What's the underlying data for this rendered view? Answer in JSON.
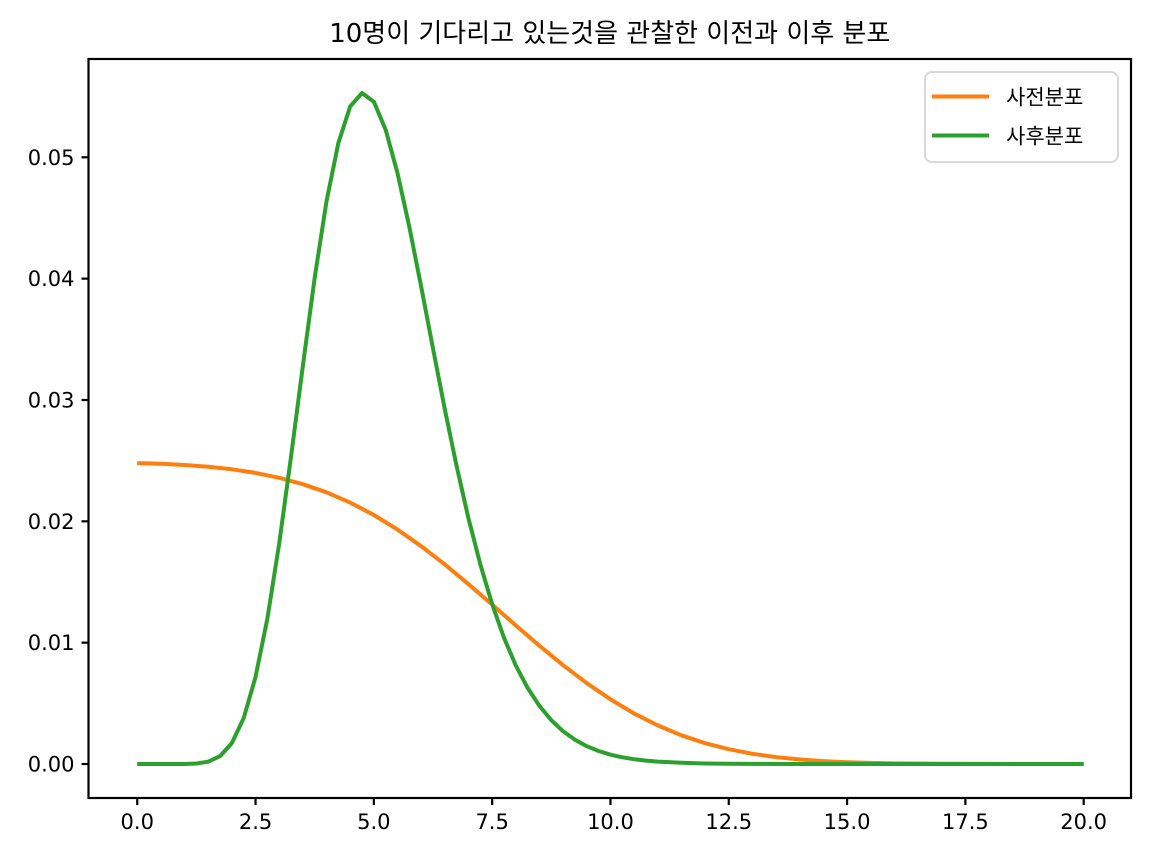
{
  "chart_data": {
    "type": "line",
    "title": "10명이 기다리고 있는것을 관찰한 이전과 이후 분포",
    "xlabel": "",
    "ylabel": "",
    "grid": false,
    "background": "#ffffff",
    "axis_color": "#000000",
    "xlim": [
      -1.03,
      21.0
    ],
    "ylim": [
      -0.0028,
      0.0581
    ],
    "xticks": {
      "values": [
        0,
        2.5,
        5,
        7.5,
        10,
        12.5,
        15,
        17.5,
        20
      ],
      "labels": [
        "0.0",
        "2.5",
        "5.0",
        "7.5",
        "10.0",
        "12.5",
        "15.0",
        "17.5",
        "20.0"
      ]
    },
    "yticks": {
      "values": [
        0,
        0.01,
        0.02,
        0.03,
        0.04,
        0.05
      ],
      "labels": [
        "0.00",
        "0.01",
        "0.02",
        "0.03",
        "0.04",
        "0.05"
      ]
    },
    "legend": {
      "position": "upper right",
      "entries": [
        "사전분포",
        "사후분포"
      ]
    },
    "series": [
      {
        "name": "사전분포",
        "color": "#ff7f0e",
        "line_width": 4,
        "x": [
          0,
          0.5,
          1,
          1.5,
          2,
          2.5,
          3,
          3.5,
          4,
          4.5,
          5,
          5.5,
          6,
          6.5,
          7,
          7.5,
          8,
          8.5,
          9,
          9.5,
          10,
          10.5,
          11,
          11.5,
          12,
          12.5,
          13,
          13.5,
          14,
          14.5,
          15,
          15.5,
          16,
          17,
          18,
          19,
          20
        ],
        "y": [
          0.0248,
          0.02474,
          0.02464,
          0.0245,
          0.02429,
          0.02399,
          0.02359,
          0.02306,
          0.02239,
          0.02154,
          0.02052,
          0.01932,
          0.01795,
          0.01645,
          0.01482,
          0.01314,
          0.01142,
          0.00974,
          0.00814,
          0.00666,
          0.00533,
          0.00416,
          0.00318,
          0.00237,
          0.00172,
          0.00122,
          0.00084,
          0.00057,
          0.00037,
          0.00024,
          0.00015,
          9e-05,
          5e-05,
          2e-05,
          1e-05,
          0.0,
          0.0
        ]
      },
      {
        "name": "사후분포",
        "color": "#2ca02c",
        "line_width": 4,
        "x": [
          0,
          0.5,
          1,
          1.25,
          1.5,
          1.75,
          2,
          2.25,
          2.5,
          2.75,
          3,
          3.25,
          3.5,
          3.75,
          4,
          4.25,
          4.5,
          4.75,
          5,
          5.25,
          5.5,
          5.75,
          6,
          6.25,
          6.5,
          6.75,
          7,
          7.25,
          7.5,
          7.75,
          8,
          8.25,
          8.5,
          8.75,
          9,
          9.25,
          9.5,
          9.75,
          10,
          10.25,
          10.5,
          10.75,
          11,
          11.5,
          12,
          12.5,
          13,
          14,
          15,
          16,
          18,
          20
        ],
        "y": [
          0,
          0,
          5e-06,
          4e-05,
          0.00019,
          0.00065,
          0.00173,
          0.00379,
          0.00717,
          0.01199,
          0.01817,
          0.02531,
          0.03284,
          0.04008,
          0.04637,
          0.05119,
          0.05419,
          0.0553,
          0.05457,
          0.05226,
          0.0487,
          0.04427,
          0.03933,
          0.03424,
          0.02923,
          0.02452,
          0.02023,
          0.01646,
          0.01316,
          0.0104,
          0.00812,
          0.00627,
          0.00478,
          0.00361,
          0.0027,
          0.002,
          0.00147,
          0.00107,
          0.00077,
          0.00055,
          0.0004,
          0.00028,
          0.0002,
          0.0001,
          4e-05,
          2e-05,
          1e-05,
          0,
          0,
          0,
          0,
          0
        ]
      }
    ]
  }
}
